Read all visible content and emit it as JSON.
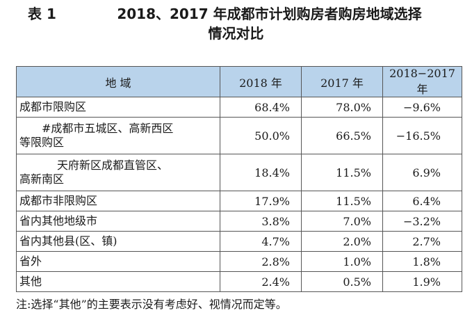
{
  "title": {
    "label": "表 1",
    "line1": "2018、2017 年成都市计划购房者购房地域选择",
    "line2": "情况对比"
  },
  "table": {
    "headers": [
      "地  域",
      "2018 年",
      "2017 年",
      "2018−2017 年"
    ],
    "rows": [
      {
        "region": "成都市限购区",
        "y2018": "68.4%",
        "y2017": "78.0%",
        "diff": "−9.6%"
      },
      {
        "region_a": "#成都市五城区、高新西区",
        "region_b": "等限购区",
        "y2018": "50.0%",
        "y2017": "66.5%",
        "diff": "−16.5%"
      },
      {
        "region_a": "天府新区成都直管区、",
        "region_b": "高新南区",
        "y2018": "18.4%",
        "y2017": "11.5%",
        "diff": "6.9%"
      },
      {
        "region": "成都市非限购区",
        "y2018": "17.9%",
        "y2017": "11.5%",
        "diff": "6.4%"
      },
      {
        "region": "省内其他地级市",
        "y2018": "3.8%",
        "y2017": "7.0%",
        "diff": "−3.2%"
      },
      {
        "region": "省内其他县(区、镇)",
        "y2018": "4.7%",
        "y2017": "2.0%",
        "diff": "2.7%"
      },
      {
        "region": "省外",
        "y2018": "2.8%",
        "y2017": "1.0%",
        "diff": "1.8%"
      },
      {
        "region": "其他",
        "y2018": "2.4%",
        "y2017": "0.5%",
        "diff": "1.9%"
      }
    ]
  },
  "note": "注:选择“其他”的主要表示没有考虑好、视情况而定等。",
  "colors": {
    "header_bg": "#b9d3eb",
    "border": "#555555"
  }
}
